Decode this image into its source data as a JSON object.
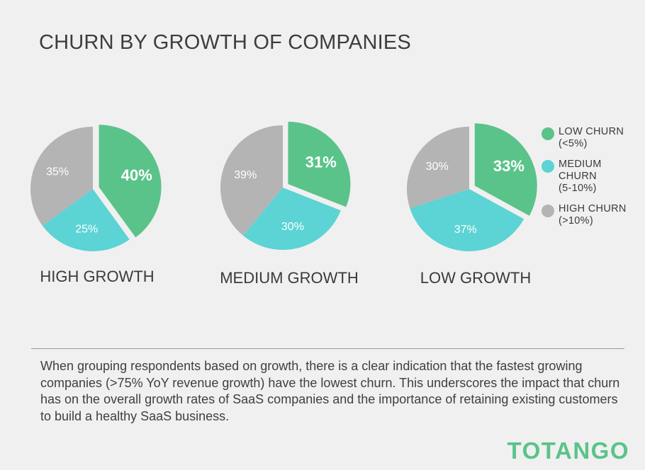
{
  "title": "CHURN BY GROWTH OF COMPANIES",
  "chart_data": [
    {
      "type": "pie",
      "label": "HIGH GROWTH",
      "slices": [
        {
          "name": "LOW CHURN (<5%)",
          "value": 40,
          "text": "40%",
          "color": "#5ac38a",
          "exploded": true
        },
        {
          "name": "MEDIUM CHURN (5-10%)",
          "value": 25,
          "text": "25%",
          "color": "#5cd3d4",
          "exploded": false
        },
        {
          "name": "HIGH CHURN (>10%)",
          "value": 35,
          "text": "35%",
          "color": "#b4b4b4",
          "exploded": false
        }
      ]
    },
    {
      "type": "pie",
      "label": "MEDIUM GROWTH",
      "slices": [
        {
          "name": "LOW CHURN (<5%)",
          "value": 31,
          "text": "31%",
          "color": "#5ac38a",
          "exploded": true
        },
        {
          "name": "MEDIUM CHURN (5-10%)",
          "value": 30,
          "text": "30%",
          "color": "#5cd3d4",
          "exploded": false
        },
        {
          "name": "HIGH CHURN (>10%)",
          "value": 39,
          "text": "39%",
          "color": "#b4b4b4",
          "exploded": false
        }
      ]
    },
    {
      "type": "pie",
      "label": "LOW GROWTH",
      "slices": [
        {
          "name": "LOW CHURN (<5%)",
          "value": 33,
          "text": "33%",
          "color": "#5ac38a",
          "exploded": true
        },
        {
          "name": "MEDIUM CHURN (5-10%)",
          "value": 37,
          "text": "37%",
          "color": "#5cd3d4",
          "exploded": false
        },
        {
          "name": "HIGH CHURN (>10%)",
          "value": 30,
          "text": "30%",
          "color": "#b4b4b4",
          "exploded": false
        }
      ]
    }
  ],
  "legend": [
    {
      "text": "LOW CHURN\n(<5%)",
      "color": "#5ac38a"
    },
    {
      "text": "MEDIUM\nCHURN\n(5-10%)",
      "color": "#5cd3d4"
    },
    {
      "text": "HIGH CHURN\n(>10%)",
      "color": "#b4b4b4"
    }
  ],
  "description": "When grouping respondents based on growth, there is a clear indication that the fastest growing companies (>75% YoY revenue growth) have the lowest churn. This underscores the impact that churn has on the overall growth rates of SaaS companies and the importance of retaining existing customers to build a healthy SaaS business.",
  "brand": "TOTANGO"
}
